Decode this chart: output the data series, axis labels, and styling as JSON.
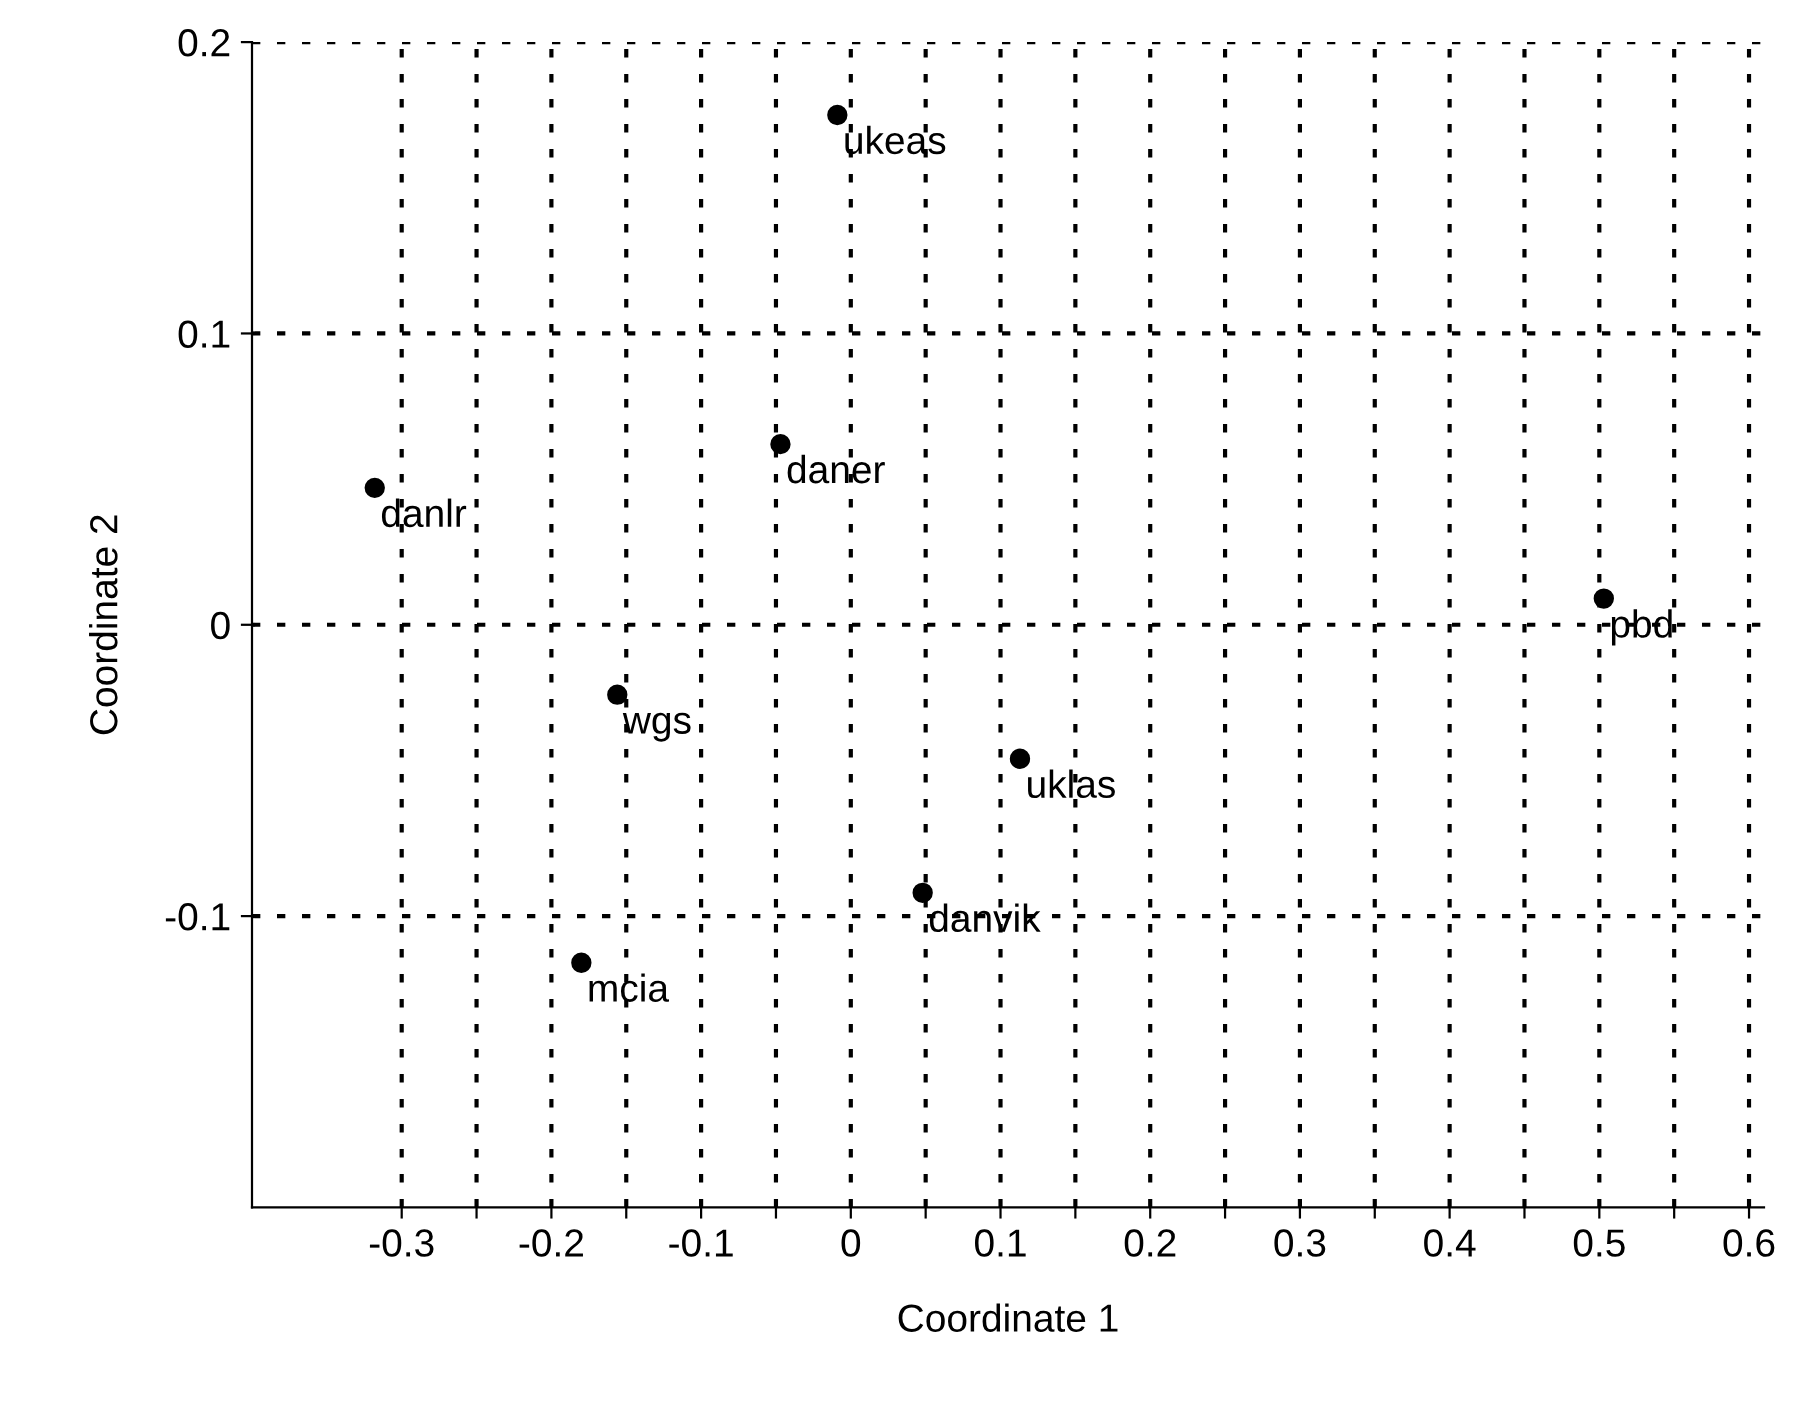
{
  "chart_data": {
    "type": "scatter",
    "xlabel": "Coordinate 1",
    "ylabel": "Coordinate 2",
    "x": [
      -0.009,
      -0.047,
      -0.318,
      0.503,
      -0.156,
      0.113,
      0.048,
      -0.18
    ],
    "values": [
      0.175,
      0.062,
      0.047,
      0.009,
      -0.024,
      -0.046,
      -0.092,
      -0.116
    ],
    "color": "#000000",
    "marker": "circle",
    "annotations": [
      {
        "text": "ukeas",
        "x": -0.009,
        "y": 0.175
      },
      {
        "text": "daner",
        "x": -0.047,
        "y": 0.062
      },
      {
        "text": "danlr",
        "x": -0.318,
        "y": 0.047
      },
      {
        "text": "pbd",
        "x": 0.503,
        "y": 0.009
      },
      {
        "text": "wgs",
        "x": -0.156,
        "y": -0.024
      },
      {
        "text": "uklas",
        "x": 0.113,
        "y": -0.046
      },
      {
        "text": "danvik",
        "x": 0.048,
        "y": -0.092
      },
      {
        "text": "mcia",
        "x": -0.18,
        "y": -0.116
      }
    ],
    "xlim": [
      -0.4,
      0.61
    ],
    "ylim": [
      -0.2,
      0.2
    ],
    "xticks": [
      -0.3,
      {
        "value": -0.25,
        "label": null
      },
      -0.2,
      {
        "value": -0.15,
        "label": null
      },
      -0.1,
      {
        "value": -0.05,
        "label": null
      },
      0,
      {
        "value": 0.05,
        "label": null
      },
      0.1,
      {
        "value": 0.15,
        "label": null
      },
      0.2,
      {
        "value": 0.25,
        "label": null
      },
      0.3,
      {
        "value": 0.35,
        "label": null
      },
      0.4,
      {
        "value": 0.45,
        "label": null
      },
      0.5,
      {
        "value": 0.55,
        "label": null
      },
      0.6
    ],
    "yticks": [
      -0.1,
      0,
      0.1,
      0.2
    ],
    "grid": true
  }
}
